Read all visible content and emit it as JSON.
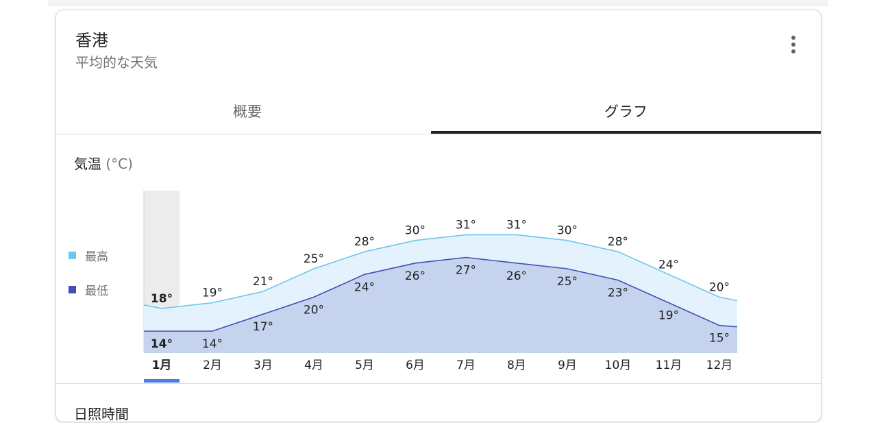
{
  "header": {
    "title": "香港",
    "subtitle": "平均的な天気"
  },
  "tabs": [
    {
      "label": "概要",
      "selected": false
    },
    {
      "label": "グラフ",
      "selected": true
    }
  ],
  "section": {
    "title": "気温",
    "unit": "(°C)"
  },
  "next_section": {
    "title": "日照時間"
  },
  "colors": {
    "high": "#6ec6ec",
    "high_fill": "#e3f2fc",
    "low": "#3f51b5",
    "low_fill": "#c5d3ee",
    "selected_indicator": "#4a7fde",
    "selected_column": "#ececec"
  },
  "chart_data": {
    "type": "area",
    "x_categories": [
      "1月",
      "2月",
      "3月",
      "4月",
      "5月",
      "6月",
      "7月",
      "8月",
      "9月",
      "10月",
      "11月",
      "12月"
    ],
    "selected_index": 0,
    "series": [
      {
        "name": "最高",
        "values": [
          18,
          19,
          21,
          25,
          28,
          30,
          31,
          31,
          30,
          28,
          24,
          20
        ]
      },
      {
        "name": "最低",
        "values": [
          14,
          14,
          17,
          20,
          24,
          26,
          27,
          26,
          25,
          23,
          19,
          15
        ]
      }
    ],
    "value_suffix": "°",
    "legend": [
      "最高",
      "最低"
    ],
    "legend_position": "left"
  }
}
